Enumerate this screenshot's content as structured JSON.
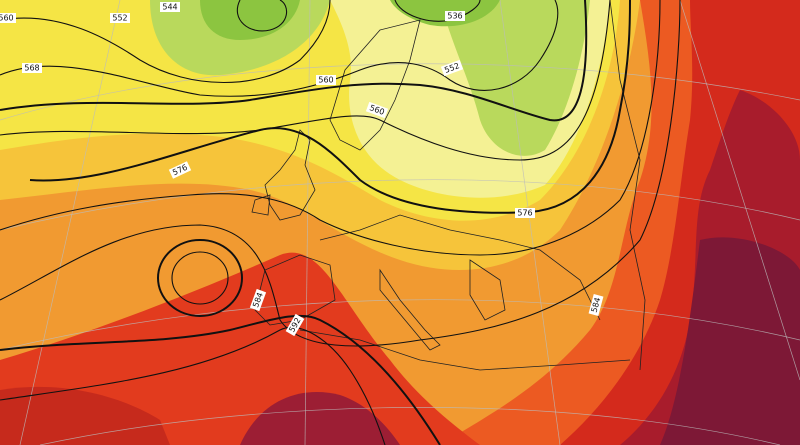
{
  "contour_labels": [
    "560",
    "552",
    "544",
    "568",
    "560",
    "576",
    "536",
    "552",
    "560",
    "576",
    "584",
    "592",
    "584"
  ]
}
